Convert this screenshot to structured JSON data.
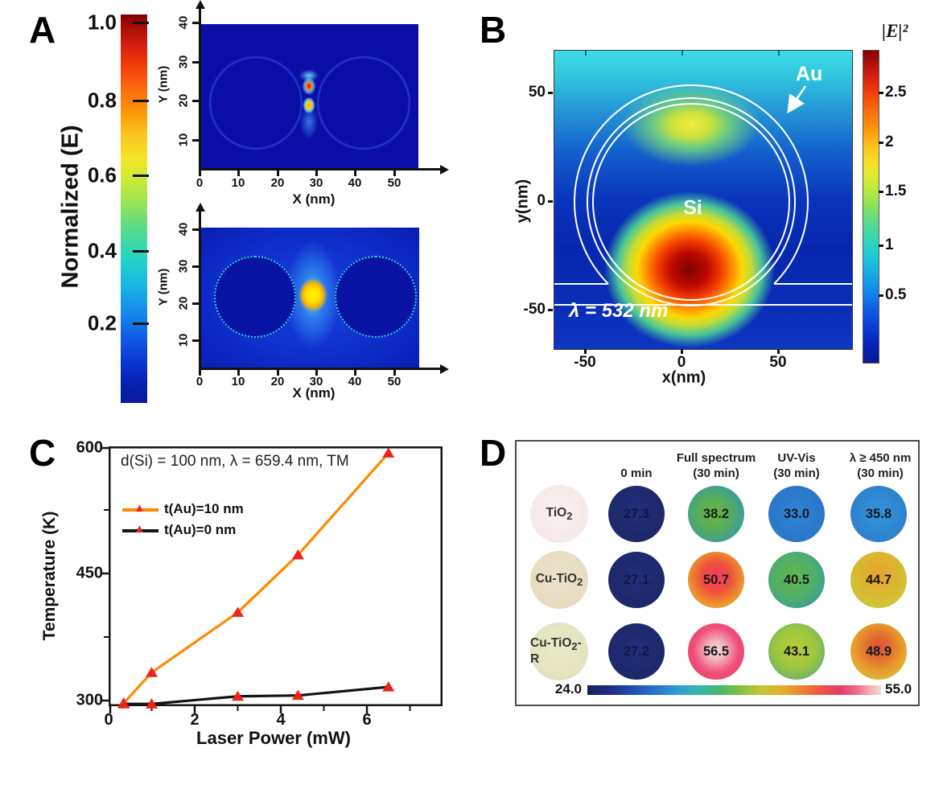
{
  "panel_a": {
    "label": "A",
    "colorbar": {
      "title": "Normalized (E)",
      "ticks": [
        "1.0",
        "0.8",
        "0.6",
        "0.4",
        "0.2"
      ]
    },
    "top_map": {
      "xlabel": "X (nm)",
      "ylabel": "Y (nm)",
      "x_ticks": [
        "0",
        "10",
        "20",
        "30",
        "40",
        "50"
      ],
      "y_ticks": [
        "40",
        "30",
        "20",
        "10"
      ]
    },
    "bottom_map": {
      "xlabel": "X (nm)",
      "ylabel": "Y (nm)",
      "x_ticks": [
        "0",
        "10",
        "20",
        "30",
        "40",
        "50"
      ],
      "y_ticks": [
        "40",
        "30",
        "20",
        "10"
      ]
    }
  },
  "panel_b": {
    "label": "B",
    "map_labels": {
      "au": "Au",
      "si": "Si",
      "wavelength": "λ = 532 nm"
    },
    "xlabel": "x(nm)",
    "ylabel": "y(nm)",
    "x_ticks": [
      "-50",
      "0",
      "50"
    ],
    "y_ticks": [
      "50",
      "0",
      "-50"
    ],
    "colorbar": {
      "title": "|E|²",
      "ticks": [
        "2.5",
        "2",
        "1.5",
        "1",
        "0.5"
      ]
    }
  },
  "panel_c": {
    "label": "C",
    "title": "d(Si) = 100 nm, λ = 659.4 nm, TM",
    "xlabel": "Laser Power (mW)",
    "ylabel": "Temperature (K)",
    "x_tick_labels": [
      "0",
      "2",
      "4",
      "6"
    ],
    "y_tick_labels": [
      "600",
      "450",
      "300"
    ]
  },
  "panel_d": {
    "label": "D",
    "headers": [
      {
        "line1": "0 min",
        "line2": ""
      },
      {
        "line1": "Full spectrum",
        "line2": "(30 min)"
      },
      {
        "line1": "UV-Vis",
        "line2": "(30 min)"
      },
      {
        "line1": "λ ≥ 450 nm",
        "line2": "(30 min)"
      }
    ],
    "rows": [
      {
        "sample_prefix": "TiO",
        "sample_sub": "2",
        "sample_suffix": "",
        "values": [
          "27.3",
          "38.2",
          "33.0",
          "35.8"
        ]
      },
      {
        "sample_prefix": "Cu-TiO",
        "sample_sub": "2",
        "sample_suffix": "",
        "values": [
          "27.1",
          "50.7",
          "40.5",
          "44.7"
        ]
      },
      {
        "sample_prefix": "Cu-TiO",
        "sample_sub": "2",
        "sample_suffix": "-R",
        "values": [
          "27.2",
          "56.5",
          "43.1",
          "48.9"
        ]
      }
    ],
    "colorbar": {
      "min": "24.0",
      "max": "55.0"
    }
  },
  "colors": {
    "series_orange": "#ff8a00",
    "series_black": "#141414",
    "marker_red": "#ee2418",
    "jet_top": "#800000",
    "jet_bottom": "#081a96",
    "navy_circle": "#1f2a72",
    "panel_d_border": "#4a4a4a"
  },
  "chart_data": [
    {
      "id": "panel_c",
      "type": "line",
      "title": "d(Si) = 100 nm, λ = 659.4 nm, TM",
      "xlabel": "Laser Power (mW)",
      "ylabel": "Temperature (K)",
      "xlim": [
        0,
        7.7
      ],
      "ylim": [
        290,
        600
      ],
      "x_ticks": [
        0,
        2,
        4,
        6
      ],
      "y_ticks": [
        300,
        450,
        600
      ],
      "grid": false,
      "legend_position": "upper-left",
      "series": [
        {
          "name": "t(Au)=10 nm",
          "color": "#ff8a00",
          "marker": "triangle",
          "marker_color": "#ee2418",
          "points": [
            [
              0.35,
              297
            ],
            [
              1.0,
              333
            ],
            [
              3.0,
              404
            ],
            [
              4.4,
              472
            ],
            [
              6.5,
              592
            ]
          ]
        },
        {
          "name": "t(Au)=0 nm",
          "color": "#141414",
          "marker": "triangle",
          "marker_color": "#ee2418",
          "points": [
            [
              0.35,
              296
            ],
            [
              1.0,
              296
            ],
            [
              3.0,
              305
            ],
            [
              4.4,
              306
            ],
            [
              6.5,
              316
            ]
          ]
        }
      ]
    },
    {
      "id": "panel_d",
      "type": "heatmap-table",
      "row_labels": [
        "TiO2",
        "Cu-TiO2",
        "Cu-TiO2-R"
      ],
      "column_labels": [
        "0 min",
        "Full spectrum (30 min)",
        "UV-Vis (30 min)",
        "λ ≥ 450 nm (30 min)"
      ],
      "values": [
        [
          27.3,
          38.2,
          33.0,
          35.8
        ],
        [
          27.1,
          50.7,
          40.5,
          44.7
        ],
        [
          27.2,
          56.5,
          43.1,
          48.9
        ]
      ],
      "colorbar_range": [
        24.0,
        55.0
      ]
    },
    {
      "id": "panel_a",
      "type": "heatmap",
      "description": "Normalized E-field maps of two adjacent nanospheres with hot spot in the gap; top map weak field, bottom map strong gap field",
      "xlabel": "X (nm)",
      "ylabel": "Y (nm)",
      "xlim": [
        0,
        56
      ],
      "ylim": [
        0,
        42
      ],
      "colorbar": {
        "label": "Normalized (E)",
        "range": [
          0,
          1.0
        ],
        "ticks": [
          0.2,
          0.4,
          0.6,
          0.8,
          1.0
        ]
      }
    },
    {
      "id": "panel_b",
      "type": "heatmap",
      "description": "|E|² map of Au-coated Si nanosphere on substrate at λ = 532 nm; strong lobe below particle, weaker lobe above",
      "xlabel": "x(nm)",
      "ylabel": "y(nm)",
      "xlim": [
        -70,
        85
      ],
      "ylim": [
        -70,
        70
      ],
      "colorbar": {
        "label": "|E|²",
        "range": [
          0,
          2.9
        ],
        "ticks": [
          0.5,
          1,
          1.5,
          2,
          2.5
        ]
      }
    }
  ]
}
